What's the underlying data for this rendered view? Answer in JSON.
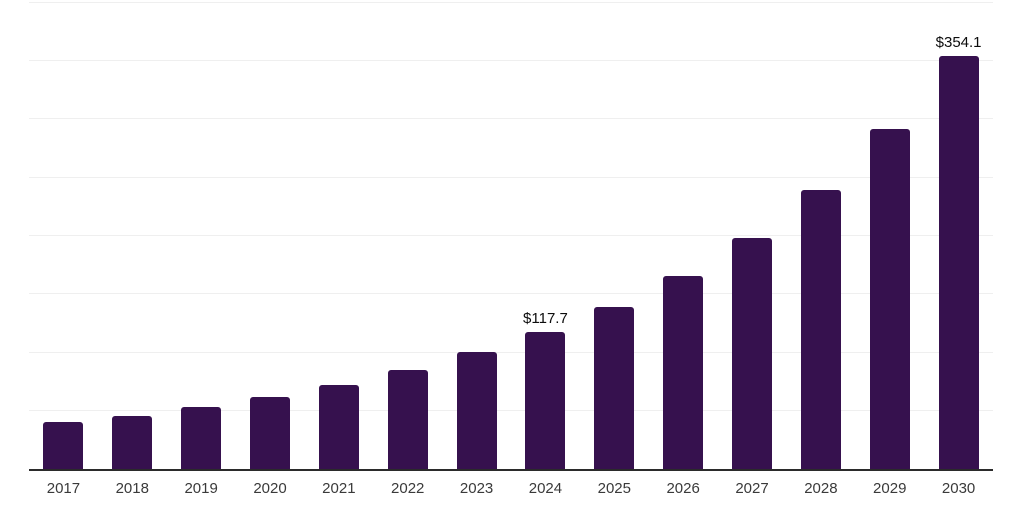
{
  "chart_data": {
    "type": "bar",
    "title": "",
    "categories": [
      "2017",
      "2018",
      "2019",
      "2020",
      "2021",
      "2022",
      "2023",
      "2024",
      "2025",
      "2026",
      "2027",
      "2028",
      "2029",
      "2030"
    ],
    "values": [
      40.1,
      45.8,
      52.9,
      61.5,
      72.3,
      85.2,
      99.9,
      117.7,
      138.5,
      165.1,
      197.9,
      239.3,
      291.5,
      354.1
    ],
    "bar_labels": [
      "",
      "",
      "",
      "",
      "",
      "",
      "",
      "$117.7",
      "",
      "",
      "",
      "",
      "",
      "$354.1"
    ],
    "xlabel": "",
    "ylabel": "",
    "ylim": [
      0,
      400
    ],
    "gridline_step": 50,
    "grid": true,
    "legend": "none",
    "colors": {
      "bar": "#36114e",
      "gridline": "#efefef",
      "axis_line": "#2b2b2b",
      "tick_label": "#3a3a3a",
      "data_label": "#0d0d0d",
      "background": "#ffffff"
    }
  }
}
